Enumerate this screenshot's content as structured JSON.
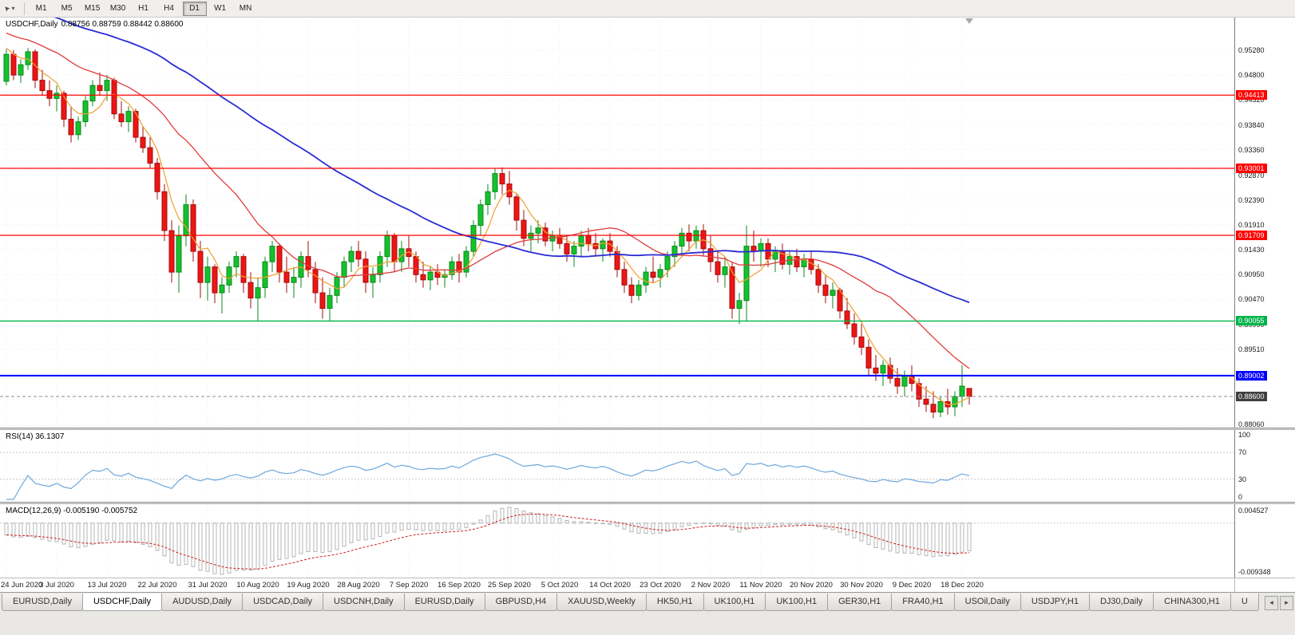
{
  "icons": {
    "cursor": "➤",
    "caret": "▾",
    "tab_left": "◂",
    "tab_right": "▸"
  },
  "toolbar": {
    "timeframes": [
      "M1",
      "M5",
      "M15",
      "M30",
      "H1",
      "H4",
      "D1",
      "W1",
      "MN"
    ],
    "active_timeframe": "D1"
  },
  "chart": {
    "title": "USDCHF,Daily",
    "ohlc": "0.88756 0.88759 0.88442 0.88600",
    "price_ticks": [
      "0.95280",
      "0.94800",
      "0.94320",
      "0.93840",
      "0.93360",
      "0.92870",
      "0.92390",
      "0.91910",
      "0.91430",
      "0.90950",
      "0.90470",
      "0.89990",
      "0.89510",
      "0.89030",
      "0.88550",
      "0.88060"
    ],
    "levels": [
      {
        "label": "0.94413",
        "value": 0.94413,
        "color": "#fe0000",
        "width": 1.2
      },
      {
        "label": "0.93001",
        "value": 0.93001,
        "color": "#fe0000",
        "width": 1.2
      },
      {
        "label": "0.91709",
        "value": 0.91709,
        "color": "#fe0000",
        "width": 1.2
      },
      {
        "label": "0.90055",
        "value": 0.90055,
        "color": "#00b44a",
        "width": 1.4
      },
      {
        "label": "0.89002",
        "value": 0.89002,
        "color": "#0000fe",
        "width": 2
      }
    ],
    "current_price": {
      "label": "0.88600",
      "value": 0.886,
      "badge_color": "#3f3f3f"
    }
  },
  "chart_data": {
    "type": "candlestick",
    "symbol": "USDCHF",
    "timeframe": "Daily",
    "colors": {
      "bull": "#15c12c",
      "bull_border": "#0b8a1e",
      "bear": "#ee1515",
      "bear_border": "#a30d0d"
    },
    "moving_averages": [
      {
        "name": "MA fast",
        "period": 5,
        "color": "#f0a030",
        "width": 1.2
      },
      {
        "name": "MA mid",
        "period": 21,
        "color": "#e23a3a",
        "width": 1.3
      },
      {
        "name": "MA slow",
        "period": 55,
        "color": "#2b2bd4",
        "width": 1.8
      }
    ],
    "x_label_indices": [
      0,
      7,
      14,
      21,
      28,
      35,
      42,
      49,
      56,
      63,
      70,
      77,
      84,
      91,
      98,
      105,
      112,
      119,
      126,
      133
    ],
    "x_labels": [
      "24 Jun 2020",
      "3 Jul 2020",
      "13 Jul 2020",
      "22 Jul 2020",
      "31 Jul 2020",
      "10 Aug 2020",
      "19 Aug 2020",
      "28 Aug 2020",
      "7 Sep 2020",
      "16 Sep 2020",
      "25 Sep 2020",
      "5 Oct 2020",
      "14 Oct 2020",
      "23 Oct 2020",
      "2 Nov 2020",
      "11 Nov 2020",
      "20 Nov 2020",
      "30 Nov 2020",
      "9 Dec 2020",
      "18 Dec 2020"
    ],
    "candles": [
      [
        0.9468,
        0.953,
        0.946,
        0.952
      ],
      [
        0.952,
        0.9528,
        0.947,
        0.948
      ],
      [
        0.948,
        0.951,
        0.9465,
        0.95
      ],
      [
        0.95,
        0.9532,
        0.949,
        0.9525
      ],
      [
        0.9525,
        0.953,
        0.9455,
        0.947
      ],
      [
        0.947,
        0.949,
        0.944,
        0.945
      ],
      [
        0.945,
        0.947,
        0.942,
        0.9435
      ],
      [
        0.9435,
        0.946,
        0.941,
        0.9445
      ],
      [
        0.9445,
        0.945,
        0.938,
        0.9395
      ],
      [
        0.9395,
        0.942,
        0.935,
        0.9365
      ],
      [
        0.9365,
        0.94,
        0.9355,
        0.939
      ],
      [
        0.939,
        0.944,
        0.938,
        0.943
      ],
      [
        0.943,
        0.947,
        0.942,
        0.946
      ],
      [
        0.946,
        0.9485,
        0.944,
        0.945
      ],
      [
        0.945,
        0.948,
        0.943,
        0.947
      ],
      [
        0.947,
        0.9475,
        0.9395,
        0.9405
      ],
      [
        0.9405,
        0.943,
        0.938,
        0.939
      ],
      [
        0.939,
        0.942,
        0.937,
        0.941
      ],
      [
        0.941,
        0.9415,
        0.935,
        0.936
      ],
      [
        0.936,
        0.938,
        0.933,
        0.934
      ],
      [
        0.934,
        0.936,
        0.93,
        0.931
      ],
      [
        0.931,
        0.932,
        0.924,
        0.9255
      ],
      [
        0.9255,
        0.927,
        0.916,
        0.918
      ],
      [
        0.918,
        0.92,
        0.908,
        0.91
      ],
      [
        0.91,
        0.919,
        0.906,
        0.917
      ],
      [
        0.917,
        0.925,
        0.915,
        0.923
      ],
      [
        0.923,
        0.924,
        0.912,
        0.914
      ],
      [
        0.914,
        0.916,
        0.905,
        0.908
      ],
      [
        0.908,
        0.913,
        0.9045,
        0.911
      ],
      [
        0.911,
        0.9115,
        0.904,
        0.906
      ],
      [
        0.906,
        0.909,
        0.902,
        0.9075
      ],
      [
        0.9075,
        0.912,
        0.906,
        0.911
      ],
      [
        0.911,
        0.914,
        0.909,
        0.913
      ],
      [
        0.913,
        0.9135,
        0.906,
        0.908
      ],
      [
        0.908,
        0.91,
        0.903,
        0.905
      ],
      [
        0.905,
        0.909,
        0.9006,
        0.907
      ],
      [
        0.907,
        0.913,
        0.905,
        0.912
      ],
      [
        0.912,
        0.916,
        0.91,
        0.915
      ],
      [
        0.915,
        0.9155,
        0.908,
        0.91
      ],
      [
        0.91,
        0.913,
        0.906,
        0.908
      ],
      [
        0.908,
        0.911,
        0.905,
        0.909
      ],
      [
        0.909,
        0.914,
        0.907,
        0.913
      ],
      [
        0.913,
        0.916,
        0.909,
        0.9105
      ],
      [
        0.9105,
        0.912,
        0.904,
        0.906
      ],
      [
        0.906,
        0.909,
        0.901,
        0.903
      ],
      [
        0.903,
        0.907,
        0.9006,
        0.9055
      ],
      [
        0.9055,
        0.91,
        0.904,
        0.909
      ],
      [
        0.909,
        0.913,
        0.907,
        0.912
      ],
      [
        0.912,
        0.915,
        0.91,
        0.914
      ],
      [
        0.914,
        0.916,
        0.911,
        0.9125
      ],
      [
        0.9125,
        0.914,
        0.906,
        0.908
      ],
      [
        0.908,
        0.911,
        0.905,
        0.9095
      ],
      [
        0.9095,
        0.914,
        0.908,
        0.913
      ],
      [
        0.913,
        0.918,
        0.911,
        0.917
      ],
      [
        0.917,
        0.9175,
        0.91,
        0.912
      ],
      [
        0.912,
        0.916,
        0.91,
        0.9145
      ],
      [
        0.9145,
        0.917,
        0.911,
        0.913
      ],
      [
        0.913,
        0.914,
        0.908,
        0.9095
      ],
      [
        0.9095,
        0.912,
        0.907,
        0.9085
      ],
      [
        0.9085,
        0.911,
        0.9065,
        0.91
      ],
      [
        0.91,
        0.9115,
        0.9075,
        0.909
      ],
      [
        0.909,
        0.9105,
        0.907,
        0.9095
      ],
      [
        0.9095,
        0.913,
        0.9085,
        0.912
      ],
      [
        0.912,
        0.9135,
        0.908,
        0.91
      ],
      [
        0.91,
        0.915,
        0.909,
        0.914
      ],
      [
        0.914,
        0.92,
        0.913,
        0.919
      ],
      [
        0.919,
        0.924,
        0.917,
        0.923
      ],
      [
        0.923,
        0.927,
        0.921,
        0.9255
      ],
      [
        0.9255,
        0.93,
        0.924,
        0.929
      ],
      [
        0.929,
        0.9302,
        0.925,
        0.927
      ],
      [
        0.927,
        0.9295,
        0.923,
        0.9245
      ],
      [
        0.9245,
        0.925,
        0.918,
        0.92
      ],
      [
        0.92,
        0.922,
        0.915,
        0.9165
      ],
      [
        0.9165,
        0.919,
        0.914,
        0.9175
      ],
      [
        0.9175,
        0.92,
        0.9155,
        0.9185
      ],
      [
        0.9185,
        0.9195,
        0.915,
        0.916
      ],
      [
        0.916,
        0.918,
        0.914,
        0.917
      ],
      [
        0.917,
        0.9185,
        0.9145,
        0.9155
      ],
      [
        0.9155,
        0.917,
        0.912,
        0.9135
      ],
      [
        0.9135,
        0.916,
        0.911,
        0.915
      ],
      [
        0.915,
        0.918,
        0.913,
        0.917
      ],
      [
        0.917,
        0.9185,
        0.914,
        0.9155
      ],
      [
        0.9155,
        0.9175,
        0.913,
        0.9145
      ],
      [
        0.9145,
        0.9165,
        0.912,
        0.916
      ],
      [
        0.916,
        0.9175,
        0.913,
        0.914
      ],
      [
        0.914,
        0.915,
        0.909,
        0.9105
      ],
      [
        0.9105,
        0.912,
        0.906,
        0.9075
      ],
      [
        0.9075,
        0.909,
        0.904,
        0.9055
      ],
      [
        0.9055,
        0.9085,
        0.9045,
        0.9075
      ],
      [
        0.9075,
        0.911,
        0.906,
        0.91
      ],
      [
        0.91,
        0.913,
        0.908,
        0.909
      ],
      [
        0.909,
        0.9115,
        0.907,
        0.9105
      ],
      [
        0.9105,
        0.914,
        0.909,
        0.913
      ],
      [
        0.913,
        0.916,
        0.911,
        0.915
      ],
      [
        0.915,
        0.9185,
        0.913,
        0.9175
      ],
      [
        0.9175,
        0.9192,
        0.914,
        0.916
      ],
      [
        0.916,
        0.919,
        0.9145,
        0.918
      ],
      [
        0.918,
        0.9192,
        0.913,
        0.9145
      ],
      [
        0.9145,
        0.917,
        0.91,
        0.912
      ],
      [
        0.912,
        0.914,
        0.908,
        0.9095
      ],
      [
        0.9095,
        0.913,
        0.907,
        0.911
      ],
      [
        0.911,
        0.912,
        0.901,
        0.903
      ],
      [
        0.903,
        0.906,
        0.9,
        0.9045
      ],
      [
        0.9045,
        0.919,
        0.9005,
        0.915
      ],
      [
        0.915,
        0.918,
        0.912,
        0.914
      ],
      [
        0.914,
        0.9165,
        0.911,
        0.9155
      ],
      [
        0.9155,
        0.9165,
        0.911,
        0.9125
      ],
      [
        0.9125,
        0.915,
        0.91,
        0.914
      ],
      [
        0.914,
        0.9155,
        0.9105,
        0.9115
      ],
      [
        0.9115,
        0.914,
        0.9095,
        0.913
      ],
      [
        0.913,
        0.9145,
        0.91,
        0.911
      ],
      [
        0.911,
        0.9135,
        0.909,
        0.9125
      ],
      [
        0.9125,
        0.914,
        0.9095,
        0.9105
      ],
      [
        0.9105,
        0.9115,
        0.906,
        0.9075
      ],
      [
        0.9075,
        0.9095,
        0.904,
        0.9055
      ],
      [
        0.9055,
        0.908,
        0.903,
        0.9065
      ],
      [
        0.9065,
        0.907,
        0.901,
        0.9025
      ],
      [
        0.9025,
        0.905,
        0.899,
        0.9
      ],
      [
        0.9,
        0.902,
        0.896,
        0.8975
      ],
      [
        0.8975,
        0.9,
        0.894,
        0.8955
      ],
      [
        0.8955,
        0.897,
        0.89,
        0.8915
      ],
      [
        0.8915,
        0.894,
        0.889,
        0.8905
      ],
      [
        0.8905,
        0.893,
        0.888,
        0.892
      ],
      [
        0.892,
        0.8935,
        0.8885,
        0.8895
      ],
      [
        0.8895,
        0.8915,
        0.8865,
        0.888
      ],
      [
        0.888,
        0.891,
        0.886,
        0.89
      ],
      [
        0.89,
        0.892,
        0.887,
        0.8885
      ],
      [
        0.8885,
        0.8895,
        0.884,
        0.8855
      ],
      [
        0.8855,
        0.888,
        0.883,
        0.8845
      ],
      [
        0.8845,
        0.887,
        0.8818,
        0.883
      ],
      [
        0.883,
        0.886,
        0.882,
        0.885
      ],
      [
        0.885,
        0.8875,
        0.8825,
        0.884
      ],
      [
        0.884,
        0.887,
        0.8822,
        0.886
      ],
      [
        0.886,
        0.892,
        0.884,
        0.888
      ],
      [
        0.88756,
        0.88759,
        0.88442,
        0.886
      ]
    ]
  },
  "rsi": {
    "label": "RSI(14) 36.1307",
    "name": "RSI",
    "period": 14,
    "value": "36.1307",
    "axis_ticks": [
      "100",
      "70",
      "30",
      "0"
    ],
    "levels": [
      70,
      30
    ],
    "line_color": "#6fa8dc"
  },
  "macd": {
    "label": "MACD(12,26,9) -0.005190 -0.005752",
    "params": "12,26,9",
    "values": "-0.005190 -0.005752",
    "axis_ticks": [
      "0.004527",
      "-0.009348"
    ],
    "histogram_color": "#b5b5b5",
    "signal_color": "#d02020"
  },
  "tabs": {
    "items": [
      "EURUSD,Daily",
      "USDCHF,Daily",
      "AUDUSD,Daily",
      "USDCAD,Daily",
      "USDCNH,Daily",
      "EURUSD,Daily",
      "GBPUSD,H4",
      "XAUUSD,Weekly",
      "HK50,H1",
      "UK100,H1",
      "UK100,H1",
      "GER30,H1",
      "FRA40,H1",
      "USOil,Daily",
      "USDJPY,H1",
      "DJ30,Daily",
      "CHINA300,H1",
      "U"
    ],
    "active_index": 1
  }
}
